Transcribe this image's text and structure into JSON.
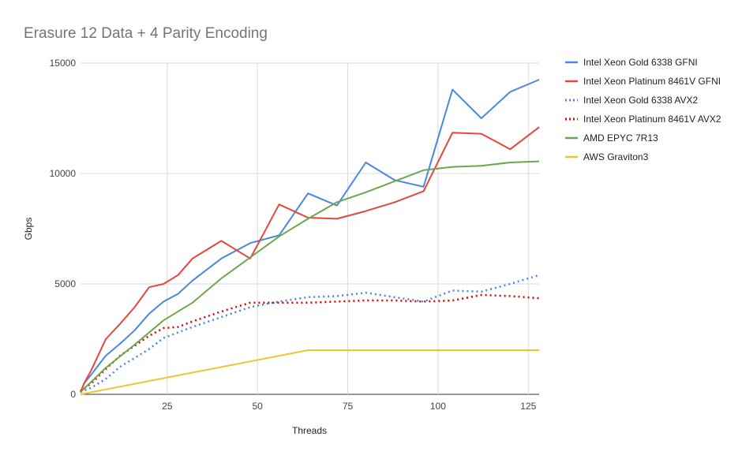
{
  "chart_data": {
    "type": "line",
    "title": "Erasure 12 Data + 4 Parity Encoding",
    "xlabel": "Threads",
    "ylabel": "Gbps",
    "xlim": [
      1,
      128
    ],
    "ylim": [
      0,
      15000
    ],
    "x_ticks": [
      25,
      50,
      75,
      100,
      125
    ],
    "y_ticks": [
      0,
      5000,
      10000,
      15000
    ],
    "grid": true,
    "legend_position": "right",
    "series": [
      {
        "name": "Intel Xeon Gold 6338 GFNI",
        "color": "#4a86e8",
        "style": "solid",
        "points": [
          [
            1,
            100
          ],
          [
            2,
            500
          ],
          [
            4,
            900
          ],
          [
            8,
            1750
          ],
          [
            12,
            2300
          ],
          [
            16,
            2900
          ],
          [
            20,
            3650
          ],
          [
            24,
            4200
          ],
          [
            28,
            4550
          ],
          [
            32,
            5150
          ],
          [
            40,
            6150
          ],
          [
            48,
            6850
          ],
          [
            56,
            7200
          ],
          [
            64,
            9100
          ],
          [
            72,
            8550
          ],
          [
            80,
            10500
          ],
          [
            88,
            9700
          ],
          [
            96,
            9400
          ],
          [
            104,
            13800
          ],
          [
            112,
            12500
          ],
          [
            120,
            13700
          ],
          [
            128,
            14250
          ]
        ]
      },
      {
        "name": "Intel Xeon Platinum 8461V GFNI",
        "color": "#e8453c",
        "style": "solid",
        "points": [
          [
            1,
            100
          ],
          [
            2,
            500
          ],
          [
            4,
            1100
          ],
          [
            8,
            2500
          ],
          [
            12,
            3200
          ],
          [
            16,
            3950
          ],
          [
            20,
            4850
          ],
          [
            24,
            5000
          ],
          [
            28,
            5400
          ],
          [
            32,
            6150
          ],
          [
            40,
            6950
          ],
          [
            48,
            6150
          ],
          [
            56,
            8600
          ],
          [
            64,
            8000
          ],
          [
            72,
            7950
          ],
          [
            80,
            8300
          ],
          [
            88,
            8700
          ],
          [
            96,
            9200
          ],
          [
            104,
            11850
          ],
          [
            112,
            11800
          ],
          [
            120,
            11100
          ],
          [
            128,
            12100
          ]
        ]
      },
      {
        "name": "Intel Xeon Gold 6338 AVX2",
        "color": "#4a86e8",
        "style": "dotted",
        "points": [
          [
            1,
            100
          ],
          [
            4,
            300
          ],
          [
            8,
            700
          ],
          [
            12,
            1250
          ],
          [
            16,
            1650
          ],
          [
            20,
            2050
          ],
          [
            24,
            2550
          ],
          [
            28,
            2800
          ],
          [
            32,
            3050
          ],
          [
            40,
            3500
          ],
          [
            48,
            3950
          ],
          [
            56,
            4200
          ],
          [
            64,
            4400
          ],
          [
            72,
            4450
          ],
          [
            80,
            4600
          ],
          [
            88,
            4400
          ],
          [
            96,
            4200
          ],
          [
            104,
            4700
          ],
          [
            112,
            4650
          ],
          [
            120,
            5000
          ],
          [
            128,
            5400
          ]
        ]
      },
      {
        "name": "Intel Xeon Platinum 8461V AVX2",
        "color": "#e00000",
        "style": "dotted",
        "points": [
          [
            1,
            150
          ],
          [
            4,
            500
          ],
          [
            8,
            1150
          ],
          [
            12,
            1750
          ],
          [
            16,
            2200
          ],
          [
            20,
            2650
          ],
          [
            24,
            3000
          ],
          [
            28,
            3050
          ],
          [
            32,
            3300
          ],
          [
            40,
            3750
          ],
          [
            48,
            4150
          ],
          [
            56,
            4150
          ],
          [
            64,
            4150
          ],
          [
            72,
            4200
          ],
          [
            80,
            4250
          ],
          [
            88,
            4250
          ],
          [
            96,
            4200
          ],
          [
            104,
            4250
          ],
          [
            112,
            4500
          ],
          [
            120,
            4450
          ],
          [
            128,
            4350
          ]
        ]
      },
      {
        "name": "AMD EPYC 7R13",
        "color": "#6aa84f",
        "style": "solid",
        "points": [
          [
            1,
            100
          ],
          [
            8,
            1200
          ],
          [
            16,
            2250
          ],
          [
            24,
            3350
          ],
          [
            32,
            4150
          ],
          [
            40,
            5250
          ],
          [
            48,
            6200
          ],
          [
            56,
            7150
          ],
          [
            64,
            7950
          ],
          [
            72,
            8700
          ],
          [
            80,
            9150
          ],
          [
            88,
            9650
          ],
          [
            96,
            10150
          ],
          [
            104,
            10300
          ],
          [
            112,
            10350
          ],
          [
            120,
            10500
          ],
          [
            128,
            10550
          ]
        ]
      },
      {
        "name": "AWS Graviton3",
        "color": "#f1c232",
        "style": "solid",
        "points": [
          [
            1,
            0
          ],
          [
            64,
            2000
          ],
          [
            72,
            2000
          ],
          [
            80,
            2000
          ],
          [
            88,
            2000
          ],
          [
            96,
            2000
          ],
          [
            104,
            2000
          ],
          [
            112,
            2000
          ],
          [
            120,
            2000
          ],
          [
            128,
            2000
          ]
        ]
      }
    ]
  }
}
